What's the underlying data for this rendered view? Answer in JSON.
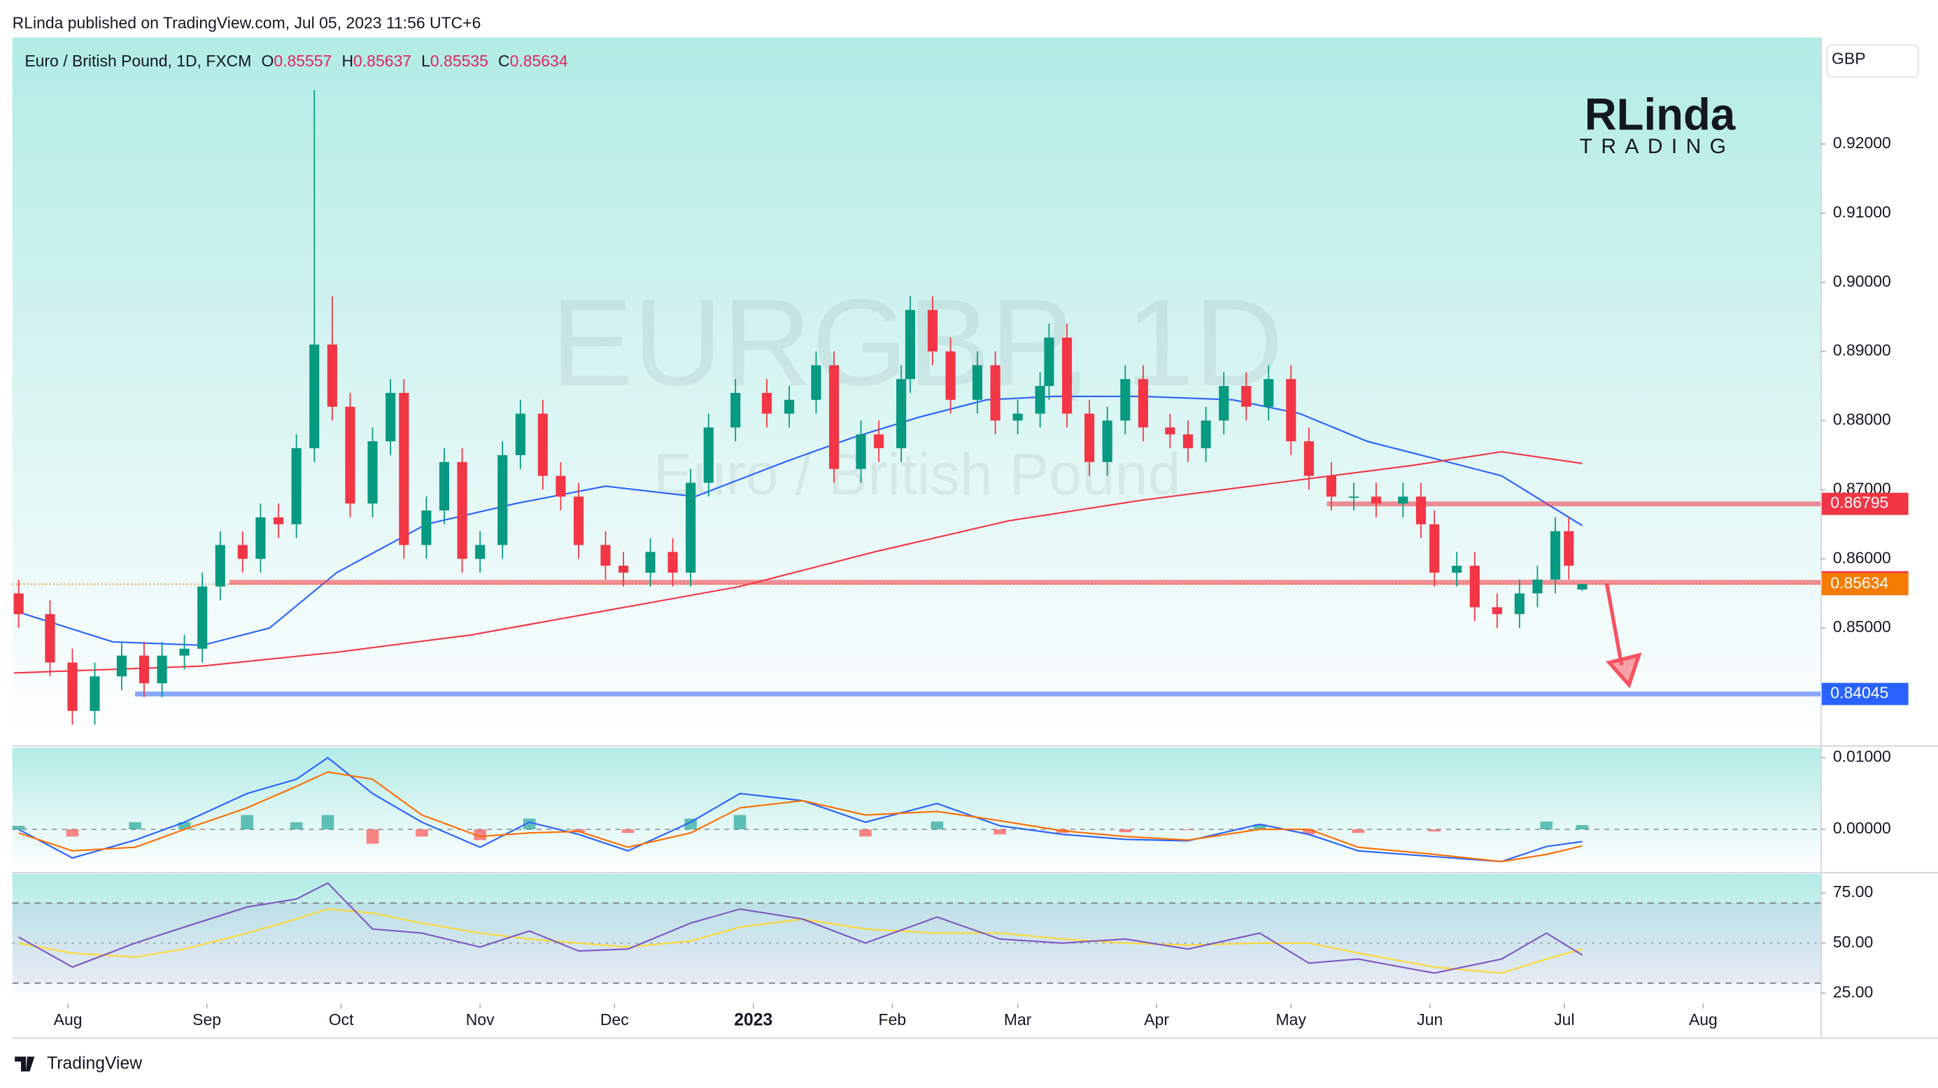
{
  "header": {
    "publisher": "RLinda published on TradingView.com, Jul 05, 2023 11:56 UTC+6"
  },
  "branding": {
    "logo": "RLinda",
    "logo_sub": "TRADING",
    "footer": "TradingView"
  },
  "chart_data": {
    "type": "candlestick",
    "title": "Euro / British Pound, 1D, FXCM",
    "ohlc_labels": [
      "O",
      "H",
      "L",
      "C"
    ],
    "watermark": "EURGBP, 1D",
    "watermark_subtitle": "Euro / British Pound",
    "currency": "GBP",
    "up_color": "#089981",
    "down_color": "#f23645",
    "x": [
      -11,
      -4,
      1,
      6,
      12,
      17,
      21,
      26,
      30,
      34,
      39,
      43,
      47,
      51,
      55,
      59,
      63,
      68,
      72,
      75,
      80,
      84,
      88,
      92,
      97,
      101,
      106,
      110,
      114,
      120,
      124,
      130,
      135,
      139,
      143,
      149,
      156,
      161,
      167,
      171,
      177,
      181,
      186,
      188,
      193,
      197,
      203,
      207,
      212,
      217,
      219,
      223,
      228,
      232,
      236,
      240,
      246,
      250,
      254,
      258,
      263,
      268,
      273,
      277,
      282,
      287,
      292,
      298,
      302,
      305,
      310,
      314,
      319,
      324,
      328,
      332,
      335,
      338
    ],
    "open": [
      0.855,
      0.852,
      0.845,
      0.838,
      0.843,
      0.846,
      0.842,
      0.846,
      0.847,
      0.856,
      0.862,
      0.86,
      0.866,
      0.865,
      0.876,
      0.891,
      0.882,
      0.868,
      0.877,
      0.884,
      0.862,
      0.867,
      0.874,
      0.86,
      0.862,
      0.875,
      0.881,
      0.872,
      0.869,
      0.862,
      0.859,
      0.858,
      0.861,
      0.858,
      0.871,
      0.879,
      0.884,
      0.881,
      0.883,
      0.888,
      0.873,
      0.878,
      0.876,
      0.886,
      0.896,
      0.89,
      0.883,
      0.888,
      0.88,
      0.881,
      0.885,
      0.892,
      0.881,
      0.874,
      0.88,
      0.886,
      0.879,
      0.878,
      0.876,
      0.88,
      0.885,
      0.882,
      0.886,
      0.877,
      0.872,
      0.869,
      0.869,
      0.868,
      0.869,
      0.865,
      0.858,
      0.859,
      0.853,
      0.852,
      0.855,
      0.857,
      0.864,
      0.85557
    ],
    "high": [
      0.857,
      0.854,
      0.847,
      0.845,
      0.848,
      0.848,
      0.848,
      0.849,
      0.858,
      0.864,
      0.864,
      0.868,
      0.868,
      0.878,
      0.9278,
      0.898,
      0.884,
      0.879,
      0.886,
      0.886,
      0.869,
      0.876,
      0.876,
      0.864,
      0.877,
      0.883,
      0.883,
      0.874,
      0.871,
      0.864,
      0.861,
      0.863,
      0.863,
      0.873,
      0.881,
      0.886,
      0.886,
      0.885,
      0.89,
      0.89,
      0.88,
      0.88,
      0.888,
      0.898,
      0.898,
      0.892,
      0.89,
      0.89,
      0.883,
      0.887,
      0.894,
      0.894,
      0.883,
      0.882,
      0.888,
      0.888,
      0.881,
      0.88,
      0.882,
      0.887,
      0.887,
      0.888,
      0.888,
      0.879,
      0.874,
      0.871,
      0.871,
      0.871,
      0.871,
      0.867,
      0.861,
      0.861,
      0.855,
      0.857,
      0.859,
      0.866,
      0.866,
      0.85637
    ],
    "low": [
      0.85,
      0.843,
      0.836,
      0.836,
      0.841,
      0.84,
      0.84,
      0.844,
      0.845,
      0.854,
      0.858,
      0.858,
      0.863,
      0.863,
      0.874,
      0.88,
      0.866,
      0.866,
      0.875,
      0.86,
      0.86,
      0.865,
      0.858,
      0.858,
      0.86,
      0.873,
      0.87,
      0.867,
      0.86,
      0.857,
      0.856,
      0.856,
      0.856,
      0.856,
      0.869,
      0.877,
      0.879,
      0.879,
      0.881,
      0.871,
      0.871,
      0.874,
      0.874,
      0.884,
      0.888,
      0.881,
      0.881,
      0.878,
      0.878,
      0.879,
      0.883,
      0.879,
      0.872,
      0.872,
      0.878,
      0.877,
      0.876,
      0.874,
      0.874,
      0.878,
      0.88,
      0.88,
      0.875,
      0.87,
      0.867,
      0.867,
      0.866,
      0.866,
      0.863,
      0.856,
      0.856,
      0.851,
      0.85,
      0.85,
      0.853,
      0.855,
      0.857,
      0.85535
    ],
    "close": [
      0.852,
      0.845,
      0.838,
      0.843,
      0.846,
      0.842,
      0.846,
      0.847,
      0.856,
      0.862,
      0.86,
      0.866,
      0.865,
      0.876,
      0.891,
      0.882,
      0.868,
      0.877,
      0.884,
      0.862,
      0.867,
      0.874,
      0.86,
      0.862,
      0.875,
      0.881,
      0.872,
      0.869,
      0.862,
      0.859,
      0.858,
      0.861,
      0.858,
      0.871,
      0.879,
      0.884,
      0.881,
      0.883,
      0.888,
      0.873,
      0.878,
      0.876,
      0.886,
      0.896,
      0.89,
      0.883,
      0.888,
      0.88,
      0.881,
      0.885,
      0.892,
      0.881,
      0.874,
      0.88,
      0.886,
      0.879,
      0.878,
      0.876,
      0.88,
      0.885,
      0.882,
      0.886,
      0.877,
      0.872,
      0.869,
      0.869,
      0.868,
      0.869,
      0.865,
      0.858,
      0.859,
      0.853,
      0.852,
      0.855,
      0.857,
      0.864,
      0.859,
      0.85634
    ],
    "last_color": "#f57c00",
    "xlim": [
      -12.4,
      391.2
    ],
    "xticks": [
      {
        "value": 0,
        "label": "Aug"
      },
      {
        "value": 31,
        "label": "Sep"
      },
      {
        "value": 61,
        "label": "Oct"
      },
      {
        "value": 92,
        "label": "Nov"
      },
      {
        "value": 122,
        "label": "Dec"
      },
      {
        "value": 153,
        "label": "2023"
      },
      {
        "value": 184,
        "label": "Feb"
      },
      {
        "value": 212,
        "label": "Mar"
      },
      {
        "value": 243,
        "label": "Apr"
      },
      {
        "value": 273,
        "label": "May"
      },
      {
        "value": 304,
        "label": "Jun"
      },
      {
        "value": 334,
        "label": "Jul"
      },
      {
        "value": 365,
        "label": "Aug"
      }
    ],
    "ylim": [
      0.8332,
      0.9354
    ],
    "yticks": [
      {
        "value": 0.85,
        "label": "0.85000"
      },
      {
        "value": 0.86,
        "label": "0.86000"
      },
      {
        "value": 0.87,
        "label": "0.87000"
      },
      {
        "value": 0.88,
        "label": "0.88000"
      },
      {
        "value": 0.89,
        "label": "0.89000"
      },
      {
        "value": 0.9,
        "label": "0.90000"
      },
      {
        "value": 0.91,
        "label": "0.91000"
      },
      {
        "value": 0.92,
        "label": "0.92000"
      }
    ],
    "moving_averages": [
      {
        "color": "#2962ff",
        "x": [
          -12,
          10,
          30,
          45,
          60,
          80,
          100,
          120,
          140,
          160,
          175,
          190,
          205,
          220,
          240,
          260,
          275,
          290,
          305,
          320,
          338
        ],
        "values": [
          0.8525,
          0.848,
          0.8475,
          0.85,
          0.858,
          0.865,
          0.868,
          0.8705,
          0.869,
          0.874,
          0.8775,
          0.8805,
          0.883,
          0.8835,
          0.8835,
          0.883,
          0.881,
          0.877,
          0.8745,
          0.872,
          0.8648
        ]
      },
      {
        "color": "#f23645",
        "x": [
          -12,
          30,
          60,
          90,
          120,
          150,
          180,
          210,
          240,
          270,
          300,
          320,
          338
        ],
        "values": [
          0.8435,
          0.8445,
          0.8465,
          0.849,
          0.8525,
          0.856,
          0.861,
          0.8655,
          0.8685,
          0.871,
          0.8735,
          0.8755,
          0.8738
        ]
      }
    ],
    "levels": [
      {
        "value": 0.86795,
        "from": 281,
        "color": "#f23645"
      },
      {
        "value": 0.85661,
        "from": 36,
        "color": "#f23645"
      },
      {
        "value": 0.84045,
        "from": 15,
        "color": "#2962ff"
      }
    ],
    "macd": {
      "x": [
        -11,
        1,
        15,
        26,
        40,
        51,
        58,
        68,
        79,
        92,
        103,
        114,
        125,
        139,
        150,
        164,
        178,
        194,
        208,
        222,
        236,
        250,
        266,
        277,
        288,
        305,
        320,
        330,
        338
      ],
      "macd": [
        0.0,
        -0.004,
        -0.0015,
        0.001,
        0.005,
        0.007,
        0.01,
        0.005,
        0.001,
        -0.0025,
        0.001,
        -0.0007,
        -0.003,
        0.001,
        0.005,
        0.004,
        0.001,
        0.0036,
        0.0005,
        -0.0007,
        -0.0014,
        -0.0016,
        0.0007,
        -0.0007,
        -0.003,
        -0.0038,
        -0.0045,
        -0.0024,
        -0.0017
      ],
      "signal": [
        -0.0005,
        -0.003,
        -0.0025,
        0.0,
        0.003,
        0.006,
        0.008,
        0.007,
        0.002,
        -0.001,
        -0.0005,
        -0.0003,
        -0.0025,
        -0.0005,
        0.003,
        0.004,
        0.002,
        0.0025,
        0.0012,
        -0.0002,
        -0.001,
        -0.0015,
        0.0,
        0.0,
        -0.0025,
        -0.0035,
        -0.0045,
        -0.0035,
        -0.0023
      ],
      "histogram": [
        0.0005,
        -0.001,
        0.001,
        0.001,
        0.002,
        0.001,
        0.002,
        -0.002,
        -0.001,
        -0.0015,
        0.0015,
        -0.0004,
        -0.0005,
        0.0015,
        0.002,
        0.0,
        -0.001,
        0.0011,
        -0.0007,
        -0.0005,
        -0.0004,
        -0.0001,
        0.0007,
        -0.0007,
        -0.0005,
        -0.0003,
        0.0,
        0.0011,
        0.0006
      ],
      "macd_color": "#2962ff",
      "signal_color": "#ff6d00",
      "pos_color": "#26a69a",
      "neg_color": "#ff5252",
      "ylim": [
        -0.00586,
        0.01138
      ],
      "yticks": [
        {
          "value": 0.01,
          "label": "0.01000"
        },
        {
          "value": 0,
          "label": "0.00000"
        }
      ]
    },
    "rsi": {
      "x": [
        -11,
        1,
        15,
        26,
        40,
        51,
        58,
        68,
        79,
        92,
        103,
        114,
        125,
        139,
        150,
        164,
        178,
        194,
        208,
        222,
        236,
        250,
        266,
        277,
        288,
        305,
        320,
        330,
        338
      ],
      "values": [
        53,
        38,
        50,
        58,
        68,
        72,
        80,
        57,
        55,
        48,
        56,
        46,
        47,
        60,
        67,
        62,
        50,
        63,
        52,
        50,
        52,
        47,
        55,
        40,
        42,
        35,
        42,
        55,
        44
      ],
      "ma": [
        50,
        45,
        43,
        47,
        55,
        62,
        67,
        65,
        60,
        55,
        52,
        50,
        48,
        51,
        58,
        62,
        57,
        55,
        55,
        52,
        50,
        49,
        50,
        50,
        45,
        38,
        35,
        42,
        47
      ],
      "color": "#7e57c2",
      "ma_color": "#fdd835",
      "bands": [
        70,
        30
      ],
      "ylim": [
        19.8,
        84.6
      ],
      "yticks": [
        {
          "value": 75,
          "label": "75.00"
        },
        {
          "value": 50,
          "label": "50.00"
        },
        {
          "value": 25,
          "label": "25.00"
        }
      ]
    }
  }
}
